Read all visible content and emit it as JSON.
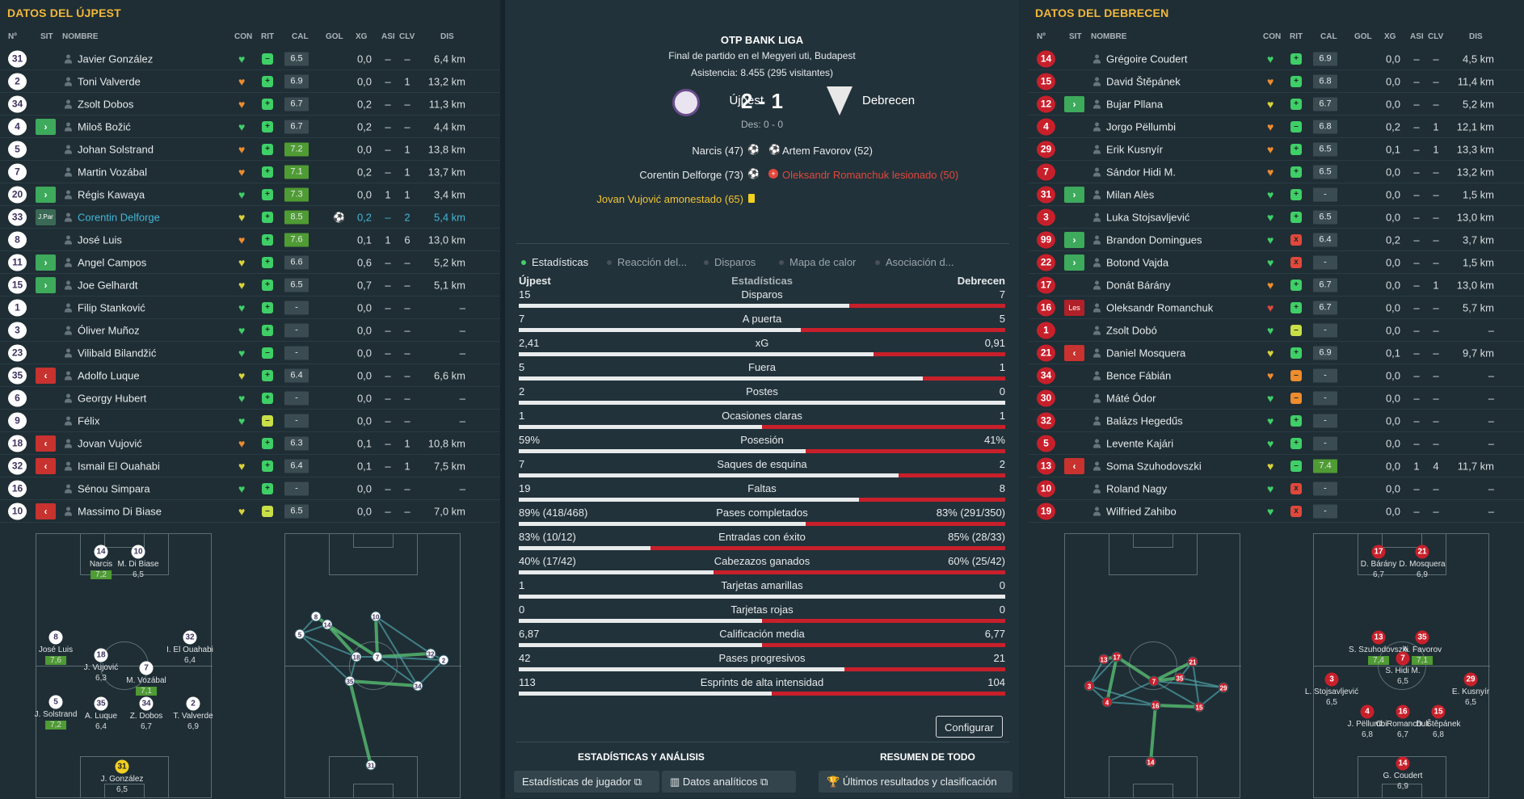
{
  "headers": {
    "num": "Nº",
    "sit": "SIT",
    "nombre": "NOMBRE",
    "con": "CON",
    "rit": "RIT",
    "cal": "CAL",
    "gol": "GOL",
    "xg": "XG",
    "asi": "ASI",
    "clv": "CLV",
    "dis": "DIS"
  },
  "left": {
    "title": "DATOS DEL ÚJPEST",
    "players": [
      {
        "num": "31",
        "sit": "",
        "name": "Javier González",
        "con": "g",
        "rit": "g",
        "rit_sym": "–",
        "cal": "6.5",
        "cal_hi": false,
        "gol": "",
        "xg": "0,0",
        "asi": "–",
        "clv": "–",
        "dis": "6,4 km"
      },
      {
        "num": "2",
        "sit": "",
        "name": "Toni Valverde",
        "con": "o",
        "rit": "g",
        "rit_sym": "+",
        "cal": "6.9",
        "cal_hi": false,
        "gol": "",
        "xg": "0,0",
        "asi": "–",
        "clv": "1",
        "dis": "13,2 km"
      },
      {
        "num": "34",
        "sit": "",
        "name": "Zsolt Dobos",
        "con": "o",
        "rit": "g",
        "rit_sym": "+",
        "cal": "6.7",
        "cal_hi": false,
        "gol": "",
        "xg": "0,2",
        "asi": "–",
        "clv": "–",
        "dis": "11,3 km"
      },
      {
        "num": "4",
        "sit": "in",
        "name": "Miloš Božić",
        "con": "g",
        "rit": "g",
        "rit_sym": "+",
        "cal": "6.7",
        "cal_hi": false,
        "gol": "",
        "xg": "0,2",
        "asi": "–",
        "clv": "–",
        "dis": "4,4 km"
      },
      {
        "num": "5",
        "sit": "",
        "name": "Johan Solstrand",
        "con": "o",
        "rit": "g",
        "rit_sym": "+",
        "cal": "7.2",
        "cal_hi": true,
        "gol": "",
        "xg": "0,0",
        "asi": "–",
        "clv": "1",
        "dis": "13,8 km"
      },
      {
        "num": "7",
        "sit": "",
        "name": "Martin Vozábal",
        "con": "o",
        "rit": "g",
        "rit_sym": "+",
        "cal": "7.1",
        "cal_hi": true,
        "gol": "",
        "xg": "0,2",
        "asi": "–",
        "clv": "1",
        "dis": "13,7 km"
      },
      {
        "num": "20",
        "sit": "in",
        "name": "Régis Kawaya",
        "con": "g",
        "rit": "g",
        "rit_sym": "+",
        "cal": "7.3",
        "cal_hi": true,
        "gol": "",
        "xg": "0,0",
        "asi": "1",
        "clv": "1",
        "dis": "3,4 km"
      },
      {
        "num": "33",
        "sit": "jpar",
        "sit_label": "J.Par",
        "name": "Corentin Delforge",
        "con": "y",
        "rit": "g",
        "rit_sym": "+",
        "cal": "8.5",
        "cal_hi": true,
        "gol": "⚽",
        "xg": "0,2",
        "asi": "–",
        "clv": "2",
        "dis": "5,4 km",
        "hl": true
      },
      {
        "num": "8",
        "sit": "",
        "name": "José Luis",
        "con": "o",
        "rit": "g",
        "rit_sym": "+",
        "cal": "7.6",
        "cal_hi": true,
        "gol": "",
        "xg": "0,1",
        "asi": "1",
        "clv": "6",
        "dis": "13,0 km"
      },
      {
        "num": "11",
        "sit": "in",
        "name": "Angel Campos",
        "con": "y",
        "rit": "g",
        "rit_sym": "+",
        "cal": "6.6",
        "cal_hi": false,
        "gol": "",
        "xg": "0,6",
        "asi": "–",
        "clv": "–",
        "dis": "5,2 km"
      },
      {
        "num": "15",
        "sit": "in",
        "name": "Joe Gelhardt",
        "con": "y",
        "rit": "g",
        "rit_sym": "+",
        "cal": "6.5",
        "cal_hi": false,
        "gol": "",
        "xg": "0,7",
        "asi": "–",
        "clv": "–",
        "dis": "5,1 km"
      },
      {
        "num": "1",
        "sit": "",
        "name": "Filip Stanković",
        "con": "g",
        "rit": "g",
        "rit_sym": "+",
        "cal": "-",
        "cal_hi": false,
        "gol": "",
        "xg": "0,0",
        "asi": "–",
        "clv": "–",
        "dis": "–"
      },
      {
        "num": "3",
        "sit": "",
        "name": "Óliver Muñoz",
        "con": "g",
        "rit": "g",
        "rit_sym": "+",
        "cal": "-",
        "cal_hi": false,
        "gol": "",
        "xg": "0,0",
        "asi": "–",
        "clv": "–",
        "dis": "–"
      },
      {
        "num": "23",
        "sit": "",
        "name": "Vilibald Bilandžić",
        "con": "g",
        "rit": "g",
        "rit_sym": "–",
        "cal": "-",
        "cal_hi": false,
        "gol": "",
        "xg": "0,0",
        "asi": "–",
        "clv": "–",
        "dis": "–"
      },
      {
        "num": "35",
        "sit": "out",
        "name": "Adolfo Luque",
        "con": "y",
        "rit": "g",
        "rit_sym": "+",
        "cal": "6.4",
        "cal_hi": false,
        "gol": "",
        "xg": "0,0",
        "asi": "–",
        "clv": "–",
        "dis": "6,6 km"
      },
      {
        "num": "6",
        "sit": "",
        "name": "Georgy Hubert",
        "con": "g",
        "rit": "g",
        "rit_sym": "+",
        "cal": "-",
        "cal_hi": false,
        "gol": "",
        "xg": "0,0",
        "asi": "–",
        "clv": "–",
        "dis": "–"
      },
      {
        "num": "9",
        "sit": "",
        "name": "Félix",
        "con": "g",
        "rit": "l",
        "rit_sym": "–",
        "cal": "-",
        "cal_hi": false,
        "gol": "",
        "xg": "0,0",
        "asi": "–",
        "clv": "–",
        "dis": "–"
      },
      {
        "num": "18",
        "sit": "out",
        "name": "Jovan Vujović",
        "con": "o",
        "rit": "g",
        "rit_sym": "+",
        "cal": "6.3",
        "cal_hi": false,
        "gol": "",
        "xg": "0,1",
        "asi": "–",
        "clv": "1",
        "dis": "10,8 km"
      },
      {
        "num": "32",
        "sit": "out",
        "name": "Ismail El Ouahabi",
        "con": "y",
        "rit": "g",
        "rit_sym": "+",
        "cal": "6.4",
        "cal_hi": false,
        "gol": "",
        "xg": "0,1",
        "asi": "–",
        "clv": "1",
        "dis": "7,5 km"
      },
      {
        "num": "16",
        "sit": "",
        "name": "Sénou Simpara",
        "con": "g",
        "rit": "g",
        "rit_sym": "+",
        "cal": "-",
        "cal_hi": false,
        "gol": "",
        "xg": "0,0",
        "asi": "–",
        "clv": "–",
        "dis": "–"
      },
      {
        "num": "10",
        "sit": "out",
        "name": "Massimo Di Biase",
        "con": "y",
        "rit": "l",
        "rit_sym": "–",
        "cal": "6.5",
        "cal_hi": false,
        "gol": "",
        "xg": "0,0",
        "asi": "–",
        "clv": "–",
        "dis": "7,0 km"
      }
    ],
    "pitch": [
      {
        "num": "14",
        "name": "Narcis",
        "rating": "7,2",
        "hi": true,
        "gk": false
      },
      {
        "num": "10",
        "name": "M. Di Biase",
        "rating": "6,5",
        "hi": false,
        "gk": false
      },
      {
        "num": "8",
        "name": "José Luis",
        "rating": "7,6",
        "hi": true,
        "gk": false
      },
      {
        "num": "32",
        "name": "I. El Ouahabi",
        "rating": "6,4",
        "hi": false,
        "gk": false
      },
      {
        "num": "18",
        "name": "J. Vujović",
        "rating": "6,3",
        "hi": false,
        "gk": false
      },
      {
        "num": "7",
        "name": "M. Vozábal",
        "rating": "7,1",
        "hi": true,
        "gk": false
      },
      {
        "num": "5",
        "name": "J. Solstrand",
        "rating": "7,2",
        "hi": true,
        "gk": false
      },
      {
        "num": "35",
        "name": "A. Luque",
        "rating": "6,4",
        "hi": false,
        "gk": false
      },
      {
        "num": "34",
        "name": "Z. Dobos",
        "rating": "6,7",
        "hi": false,
        "gk": false
      },
      {
        "num": "2",
        "name": "T. Valverde",
        "rating": "6,9",
        "hi": false,
        "gk": false
      },
      {
        "num": "31",
        "name": "J. González",
        "rating": "6,5",
        "hi": false,
        "gk": true
      }
    ],
    "map": [
      "8",
      "14",
      "10",
      "5",
      "18",
      "7",
      "32",
      "2",
      "35",
      "34",
      "31"
    ]
  },
  "right": {
    "title": "DATOS DEL DEBRECEN",
    "players": [
      {
        "num": "14",
        "sit": "",
        "name": "Grégoire Coudert",
        "con": "g",
        "rit": "g",
        "rit_sym": "+",
        "cal": "6.9",
        "cal_hi": false,
        "gol": "",
        "xg": "0,0",
        "asi": "–",
        "clv": "–",
        "dis": "4,5 km"
      },
      {
        "num": "15",
        "sit": "",
        "name": "David Štěpánek",
        "con": "o",
        "rit": "g",
        "rit_sym": "+",
        "cal": "6.8",
        "cal_hi": false,
        "gol": "",
        "xg": "0,0",
        "asi": "–",
        "clv": "–",
        "dis": "11,4 km"
      },
      {
        "num": "12",
        "sit": "in",
        "name": "Bujar Pllana",
        "con": "y",
        "rit": "g",
        "rit_sym": "+",
        "cal": "6.7",
        "cal_hi": false,
        "gol": "",
        "xg": "0,0",
        "asi": "–",
        "clv": "–",
        "dis": "5,2 km"
      },
      {
        "num": "4",
        "sit": "",
        "name": "Jorgo Pëllumbi",
        "con": "o",
        "rit": "g",
        "rit_sym": "–",
        "cal": "6.8",
        "cal_hi": false,
        "gol": "",
        "xg": "0,2",
        "asi": "–",
        "clv": "1",
        "dis": "12,1 km"
      },
      {
        "num": "29",
        "sit": "",
        "name": "Erik Kusnyír",
        "con": "o",
        "rit": "g",
        "rit_sym": "+",
        "cal": "6.5",
        "cal_hi": false,
        "gol": "",
        "xg": "0,1",
        "asi": "–",
        "clv": "1",
        "dis": "13,3 km"
      },
      {
        "num": "7",
        "sit": "",
        "name": "Sándor Hidi M.",
        "con": "o",
        "rit": "g",
        "rit_sym": "+",
        "cal": "6.5",
        "cal_hi": false,
        "gol": "",
        "xg": "0,0",
        "asi": "–",
        "clv": "–",
        "dis": "13,2 km"
      },
      {
        "num": "31",
        "sit": "in",
        "name": "Milan Alès",
        "con": "g",
        "rit": "g",
        "rit_sym": "+",
        "cal": "-",
        "cal_hi": false,
        "gol": "",
        "xg": "0,0",
        "asi": "–",
        "clv": "–",
        "dis": "1,5 km"
      },
      {
        "num": "3",
        "sit": "",
        "name": "Luka Stojsavljević",
        "con": "g",
        "rit": "g",
        "rit_sym": "+",
        "cal": "6.5",
        "cal_hi": false,
        "gol": "",
        "xg": "0,0",
        "asi": "–",
        "clv": "–",
        "dis": "13,0 km"
      },
      {
        "num": "99",
        "sit": "in",
        "name": "Brandon Domingues",
        "con": "g",
        "rit": "r",
        "rit_sym": "x",
        "cal": "6.4",
        "cal_hi": false,
        "gol": "",
        "xg": "0,2",
        "asi": "–",
        "clv": "–",
        "dis": "3,7 km"
      },
      {
        "num": "22",
        "sit": "in",
        "name": "Botond Vajda",
        "con": "g",
        "rit": "r",
        "rit_sym": "x",
        "cal": "-",
        "cal_hi": false,
        "gol": "",
        "xg": "0,0",
        "asi": "–",
        "clv": "–",
        "dis": "1,5 km"
      },
      {
        "num": "17",
        "sit": "",
        "name": "Donát Bárány",
        "con": "o",
        "rit": "g",
        "rit_sym": "+",
        "cal": "6.7",
        "cal_hi": false,
        "gol": "",
        "xg": "0,0",
        "asi": "–",
        "clv": "1",
        "dis": "13,0 km"
      },
      {
        "num": "16",
        "sit": "les",
        "sit_label": "Les",
        "name": "Oleksandr Romanchuk",
        "con": "r",
        "rit": "g",
        "rit_sym": "+",
        "cal": "6.7",
        "cal_hi": false,
        "gol": "",
        "xg": "0,0",
        "asi": "–",
        "clv": "–",
        "dis": "5,7 km"
      },
      {
        "num": "1",
        "sit": "",
        "name": "Zsolt Dobó",
        "con": "g",
        "rit": "l",
        "rit_sym": "–",
        "cal": "-",
        "cal_hi": false,
        "gol": "",
        "xg": "0,0",
        "asi": "–",
        "clv": "–",
        "dis": "–"
      },
      {
        "num": "21",
        "sit": "out",
        "name": "Daniel Mosquera",
        "con": "y",
        "rit": "g",
        "rit_sym": "+",
        "cal": "6.9",
        "cal_hi": false,
        "gol": "",
        "xg": "0,1",
        "asi": "–",
        "clv": "–",
        "dis": "9,7 km"
      },
      {
        "num": "34",
        "sit": "",
        "name": "Bence Fábián",
        "con": "o",
        "rit": "o",
        "rit_sym": "–",
        "cal": "-",
        "cal_hi": false,
        "gol": "",
        "xg": "0,0",
        "asi": "–",
        "clv": "–",
        "dis": "–"
      },
      {
        "num": "30",
        "sit": "",
        "name": "Máté Ódor",
        "con": "g",
        "rit": "o",
        "rit_sym": "–",
        "cal": "-",
        "cal_hi": false,
        "gol": "",
        "xg": "0,0",
        "asi": "–",
        "clv": "–",
        "dis": "–"
      },
      {
        "num": "32",
        "sit": "",
        "name": "Balázs Hegedűs",
        "con": "g",
        "rit": "g",
        "rit_sym": "+",
        "cal": "-",
        "cal_hi": false,
        "gol": "",
        "xg": "0,0",
        "asi": "–",
        "clv": "–",
        "dis": "–"
      },
      {
        "num": "5",
        "sit": "",
        "name": "Levente Kajári",
        "con": "g",
        "rit": "g",
        "rit_sym": "+",
        "cal": "-",
        "cal_hi": false,
        "gol": "",
        "xg": "0,0",
        "asi": "–",
        "clv": "–",
        "dis": "–"
      },
      {
        "num": "13",
        "sit": "out",
        "name": "Soma Szuhodovszki",
        "con": "y",
        "rit": "g",
        "rit_sym": "–",
        "cal": "7.4",
        "cal_hi": true,
        "gol": "",
        "xg": "0,0",
        "asi": "1",
        "clv": "4",
        "dis": "11,7 km"
      },
      {
        "num": "10",
        "sit": "",
        "name": "Roland Nagy",
        "con": "g",
        "rit": "r",
        "rit_sym": "x",
        "cal": "-",
        "cal_hi": false,
        "gol": "",
        "xg": "0,0",
        "asi": "–",
        "clv": "–",
        "dis": "–"
      },
      {
        "num": "19",
        "sit": "",
        "name": "Wilfried Zahibo",
        "con": "g",
        "rit": "r",
        "rit_sym": "x",
        "cal": "-",
        "cal_hi": false,
        "gol": "",
        "xg": "0,0",
        "asi": "–",
        "clv": "–",
        "dis": "–"
      }
    ],
    "pitch": [
      {
        "num": "17",
        "name": "D. Bárány",
        "rating": "6,7",
        "hi": false,
        "gk": false
      },
      {
        "num": "21",
        "name": "D. Mosquera",
        "rating": "6,9",
        "hi": false,
        "gk": false
      },
      {
        "num": "13",
        "name": "S. Szuhodovszki",
        "rating": "7,4",
        "hi": true,
        "gk": false
      },
      {
        "num": "35",
        "name": "A. Favorov",
        "rating": "7,1",
        "hi": true,
        "gk": false
      },
      {
        "num": "7",
        "name": "S. Hidi M.",
        "rating": "6,5",
        "hi": false,
        "gk": false
      },
      {
        "num": "3",
        "name": "L. Stojsavljević",
        "rating": "6,5",
        "hi": false,
        "gk": false
      },
      {
        "num": "29",
        "name": "E. Kusnyír",
        "rating": "6,5",
        "hi": false,
        "gk": false
      },
      {
        "num": "4",
        "name": "J. Pëllumbi",
        "rating": "6,8",
        "hi": false,
        "gk": false
      },
      {
        "num": "16",
        "name": "O. Romanchuk",
        "rating": "6,7",
        "hi": false,
        "gk": false
      },
      {
        "num": "15",
        "name": "D. Štěpánek",
        "rating": "6,8",
        "hi": false,
        "gk": false
      },
      {
        "num": "14",
        "name": "G. Coudert",
        "rating": "6,9",
        "hi": false,
        "gk": false
      }
    ],
    "map": [
      "13",
      "17",
      "21",
      "3",
      "4",
      "7",
      "35",
      "29",
      "16",
      "15",
      "14"
    ]
  },
  "match": {
    "league": "OTP BANK LIGA",
    "subtitle": "Final de partido en el Megyeri uti, Budapest",
    "attendance": "Asistencia: 8.455 (295 visitantes)",
    "home": "Újpest",
    "away": "Debrecen",
    "score": "2 - 1",
    "halftime": "Des: 0 - 0",
    "home_events": [
      "Narcis (47)",
      "Corentin Delforge (73)",
      "Jovan Vujović amonestado (65)"
    ],
    "away_events": [
      "Artem Favorov (52)",
      "Oleksandr Romanchuk lesionado (50)"
    ]
  },
  "tabs": [
    "Estadísticas",
    "Reacción del...",
    "Disparos",
    "Mapa de calor",
    "Asociación d..."
  ],
  "stats_header": {
    "home": "Újpest",
    "title": "Estadísticas",
    "away": "Debrecen"
  },
  "stats": [
    {
      "label": "Disparos",
      "home": "15",
      "away": "7",
      "home_share": 0.68
    },
    {
      "label": "A puerta",
      "home": "7",
      "away": "5",
      "home_share": 0.58
    },
    {
      "label": "xG",
      "home": "2,41",
      "away": "0,91",
      "home_share": 0.73
    },
    {
      "label": "Fuera",
      "home": "5",
      "away": "1",
      "home_share": 0.83
    },
    {
      "label": "Postes",
      "home": "2",
      "away": "0",
      "home_share": 1.0
    },
    {
      "label": "Ocasiones claras",
      "home": "1",
      "away": "1",
      "home_share": 0.5
    },
    {
      "label": "Posesión",
      "home": "59%",
      "away": "41%",
      "home_share": 0.59
    },
    {
      "label": "Saques de esquina",
      "home": "7",
      "away": "2",
      "home_share": 0.78
    },
    {
      "label": "Faltas",
      "home": "19",
      "away": "8",
      "home_share": 0.7
    },
    {
      "label": "Pases completados",
      "home": "89% (418/468)",
      "away": "83% (291/350)",
      "home_share": 0.59
    },
    {
      "label": "Entradas con éxito",
      "home": "83% (10/12)",
      "away": "85% (28/33)",
      "home_share": 0.27
    },
    {
      "label": "Cabezazos ganados",
      "home": "40% (17/42)",
      "away": "60% (25/42)",
      "home_share": 0.4
    },
    {
      "label": "Tarjetas amarillas",
      "home": "1",
      "away": "0",
      "home_share": 1.0
    },
    {
      "label": "Tarjetas rojas",
      "home": "0",
      "away": "0",
      "home_share": 0.5
    },
    {
      "label": "Calificación media",
      "home": "6,87",
      "away": "6,77",
      "home_share": 0.5
    },
    {
      "label": "Pases progresivos",
      "home": "42",
      "away": "21",
      "home_share": 0.67
    },
    {
      "label": "Esprints de alta intensidad",
      "home": "113",
      "away": "104",
      "home_share": 0.52
    }
  ],
  "buttons": {
    "configurar": "Configurar",
    "stats_jugador": "Estadísticas de jugador",
    "datos": "Datos analíticos",
    "ultimos": "Últimos resultados y clasificación"
  },
  "sections": {
    "analisis": "ESTADÍSTICAS Y ANÁLISIS",
    "resumen": "RESUMEN DE TODO"
  }
}
